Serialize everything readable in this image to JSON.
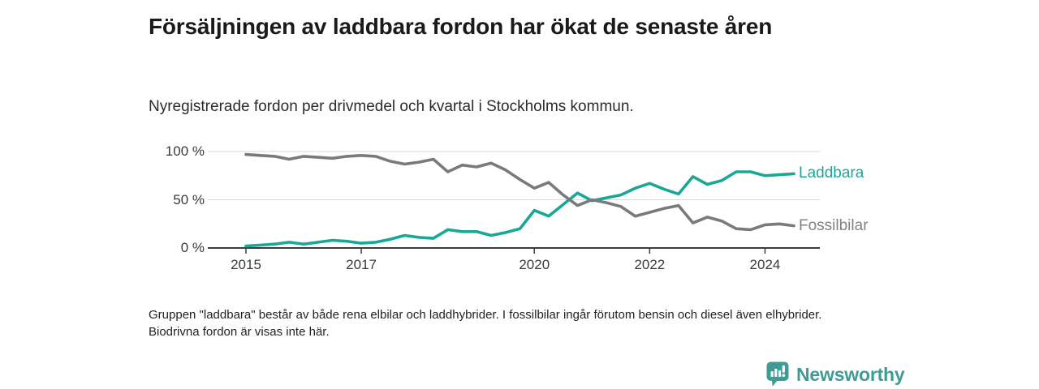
{
  "header": {
    "title": "Försäljningen av laddbara fordon har ökat de senaste åren",
    "subtitle": "Nyregistrerade fordon per drivmedel och kvartal i Stockholms kommun."
  },
  "chart_data": {
    "type": "line",
    "unit": "%",
    "frequency": "quarterly",
    "x_start": "2015-Q1",
    "x_end": "2024-Q3",
    "ylim": [
      0,
      100
    ],
    "grid": "horizontal",
    "legend_position": "right-of-line-ends",
    "yticks": [
      {
        "value": 100,
        "label": "100 %"
      },
      {
        "value": 50,
        "label": "50 %"
      },
      {
        "value": 0,
        "label": "0 %"
      }
    ],
    "xticks": [
      {
        "year": 2015,
        "label": "2015"
      },
      {
        "year": 2017,
        "label": "2017"
      },
      {
        "year": 2020,
        "label": "2020"
      },
      {
        "year": 2022,
        "label": "2022"
      },
      {
        "year": 2024,
        "label": "2024"
      }
    ],
    "series": [
      {
        "name": "Laddbara",
        "color": "#1AA896",
        "label_color": "#1AA896",
        "values": [
          2,
          3,
          4,
          6,
          4,
          6,
          8,
          7,
          5,
          6,
          9,
          13,
          11,
          10,
          19,
          17,
          17,
          13,
          16,
          20,
          39,
          33,
          45,
          57,
          49,
          52,
          55,
          62,
          67,
          61,
          56,
          74,
          66,
          70,
          79,
          79,
          75,
          76,
          77
        ]
      },
      {
        "name": "Fossilbilar",
        "color": "#787A7E",
        "label_color": "#808285",
        "values": [
          97,
          96,
          95,
          92,
          95,
          94,
          93,
          95,
          96,
          95,
          90,
          87,
          89,
          92,
          79,
          86,
          84,
          88,
          81,
          71,
          62,
          68,
          55,
          44,
          50,
          47,
          43,
          33,
          37,
          41,
          44,
          26,
          32,
          28,
          20,
          19,
          24,
          25,
          23
        ]
      }
    ]
  },
  "footnote": "Gruppen \"laddbara\" består av både rena elbilar och laddhybrider. I fossilbilar ingår förutom bensin och diesel även elhybrider. Biodrivna fordon är visas inte här.",
  "logo": {
    "text": "Newsworthy",
    "color": "#3E9C95"
  }
}
